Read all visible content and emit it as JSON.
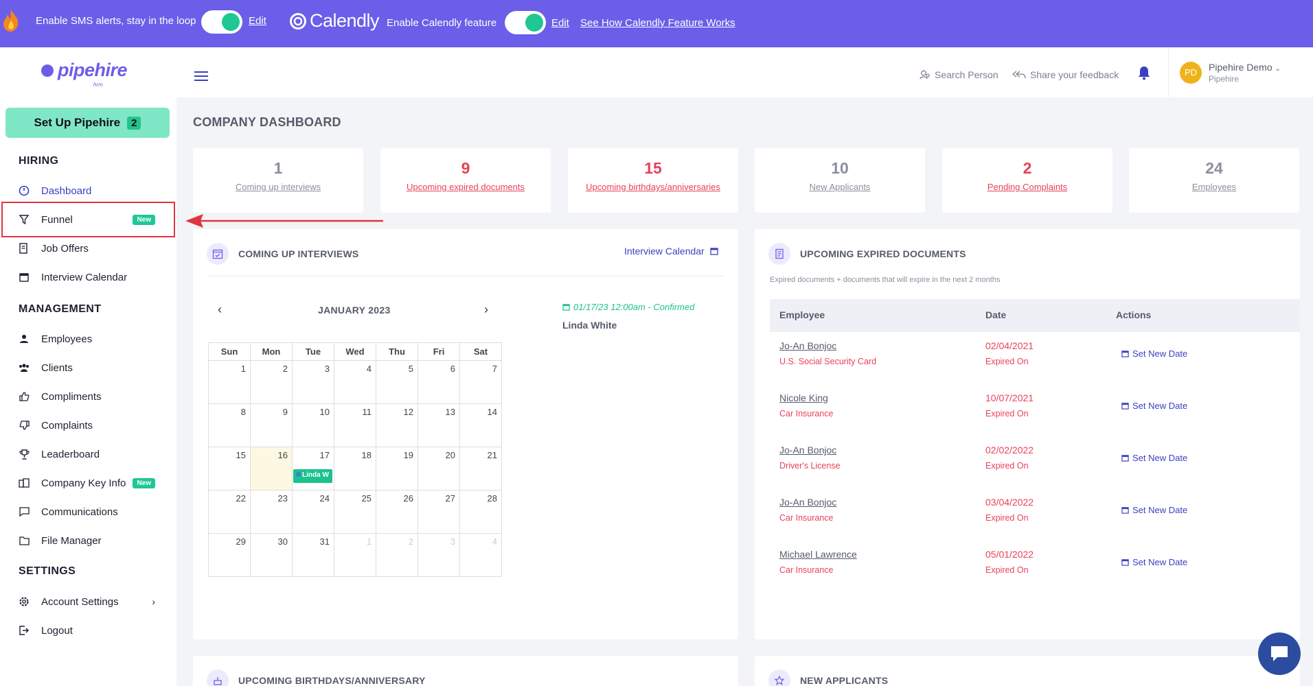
{
  "topbar": {
    "sms_label": "Enable SMS alerts, stay in the loop",
    "sms_edit": "Edit",
    "calendly_logo": "Calendly",
    "calendly_label": "Enable Calendly feature",
    "calendly_edit": "Edit",
    "calendly_link": "See How Calendly Feature Works",
    "bg_color": "#6b5ee8",
    "toggle_on_color": "#1fc795"
  },
  "brand": {
    "name": "pipehire",
    "sub": "hrm"
  },
  "sidebar": {
    "setup_label": "Set Up Pipehire",
    "setup_count": "2",
    "hiring_title": "HIRING",
    "management_title": "MANAGEMENT",
    "settings_title": "SETTINGS",
    "new_badge": "New",
    "items": {
      "dashboard": "Dashboard",
      "funnel": "Funnel",
      "job_offers": "Job Offers",
      "interview_calendar": "Interview Calendar",
      "employees": "Employees",
      "clients": "Clients",
      "compliments": "Compliments",
      "complaints": "Complaints",
      "leaderboard": "Leaderboard",
      "company_key_info": "Company Key Info",
      "communications": "Communications",
      "file_manager": "File Manager",
      "account_settings": "Account Settings",
      "logout": "Logout"
    }
  },
  "header": {
    "search_person": "Search Person",
    "feedback": "Share your feedback",
    "user_initials": "PD",
    "user_name": "Pipehire Demo",
    "user_org": "Pipehire"
  },
  "page_title": "COMPANY DASHBOARD",
  "stats": [
    {
      "value": "1",
      "label": "Coming up interviews",
      "tone": "grey"
    },
    {
      "value": "9",
      "label": "Upcoming expired documents",
      "tone": "red"
    },
    {
      "value": "15",
      "label": "Upcoming birthdays/anniversaries",
      "tone": "red"
    },
    {
      "value": "10",
      "label": "New Applicants",
      "tone": "grey"
    },
    {
      "value": "2",
      "label": "Pending Complaints",
      "tone": "red"
    },
    {
      "value": "24",
      "label": "Employees",
      "tone": "grey"
    }
  ],
  "interviews": {
    "title": "COMING UP INTERVIEWS",
    "calendar_link": "Interview Calendar",
    "month": "JANUARY 2023",
    "weekdays": [
      "Sun",
      "Mon",
      "Tue",
      "Wed",
      "Thu",
      "Fri",
      "Sat"
    ],
    "weeks": [
      [
        "1",
        "2",
        "3",
        "4",
        "5",
        "6",
        "7"
      ],
      [
        "8",
        "9",
        "10",
        "11",
        "12",
        "13",
        "14"
      ],
      [
        "15",
        "16",
        "17",
        "18",
        "19",
        "20",
        "21"
      ],
      [
        "22",
        "23",
        "24",
        "25",
        "26",
        "27",
        "28"
      ],
      [
        "29",
        "30",
        "31",
        "1",
        "2",
        "3",
        "4"
      ]
    ],
    "event_chip": "Linda W",
    "event_time": "01/17/23 12:00am - Confirmed",
    "event_name": "Linda White"
  },
  "expired_docs": {
    "title": "UPCOMING EXPIRED DOCUMENTS",
    "subtitle": "Expired documents + documents that will expire in the next 2 months",
    "col_employee": "Employee",
    "col_date": "Date",
    "col_actions": "Actions",
    "action_label": "Set New Date",
    "rows": [
      {
        "employee": "Jo-An Bonjoc",
        "document": "U.S. Social Security Card",
        "date": "02/04/2021",
        "status": "Expired On"
      },
      {
        "employee": "Nicole King",
        "document": "Car Insurance",
        "date": "10/07/2021",
        "status": "Expired On"
      },
      {
        "employee": "Jo-An Bonjoc",
        "document": "Driver's License",
        "date": "02/02/2022",
        "status": "Expired On"
      },
      {
        "employee": "Jo-An Bonjoc",
        "document": "Car Insurance",
        "date": "03/04/2022",
        "status": "Expired On"
      },
      {
        "employee": "Michael Lawrence",
        "document": "Car Insurance",
        "date": "05/01/2022",
        "status": "Expired On"
      }
    ]
  },
  "birthdays": {
    "title": "UPCOMING BIRTHDAYS/ANNIVERSARY"
  },
  "new_applicants": {
    "title": "NEW APPLICANTS"
  }
}
